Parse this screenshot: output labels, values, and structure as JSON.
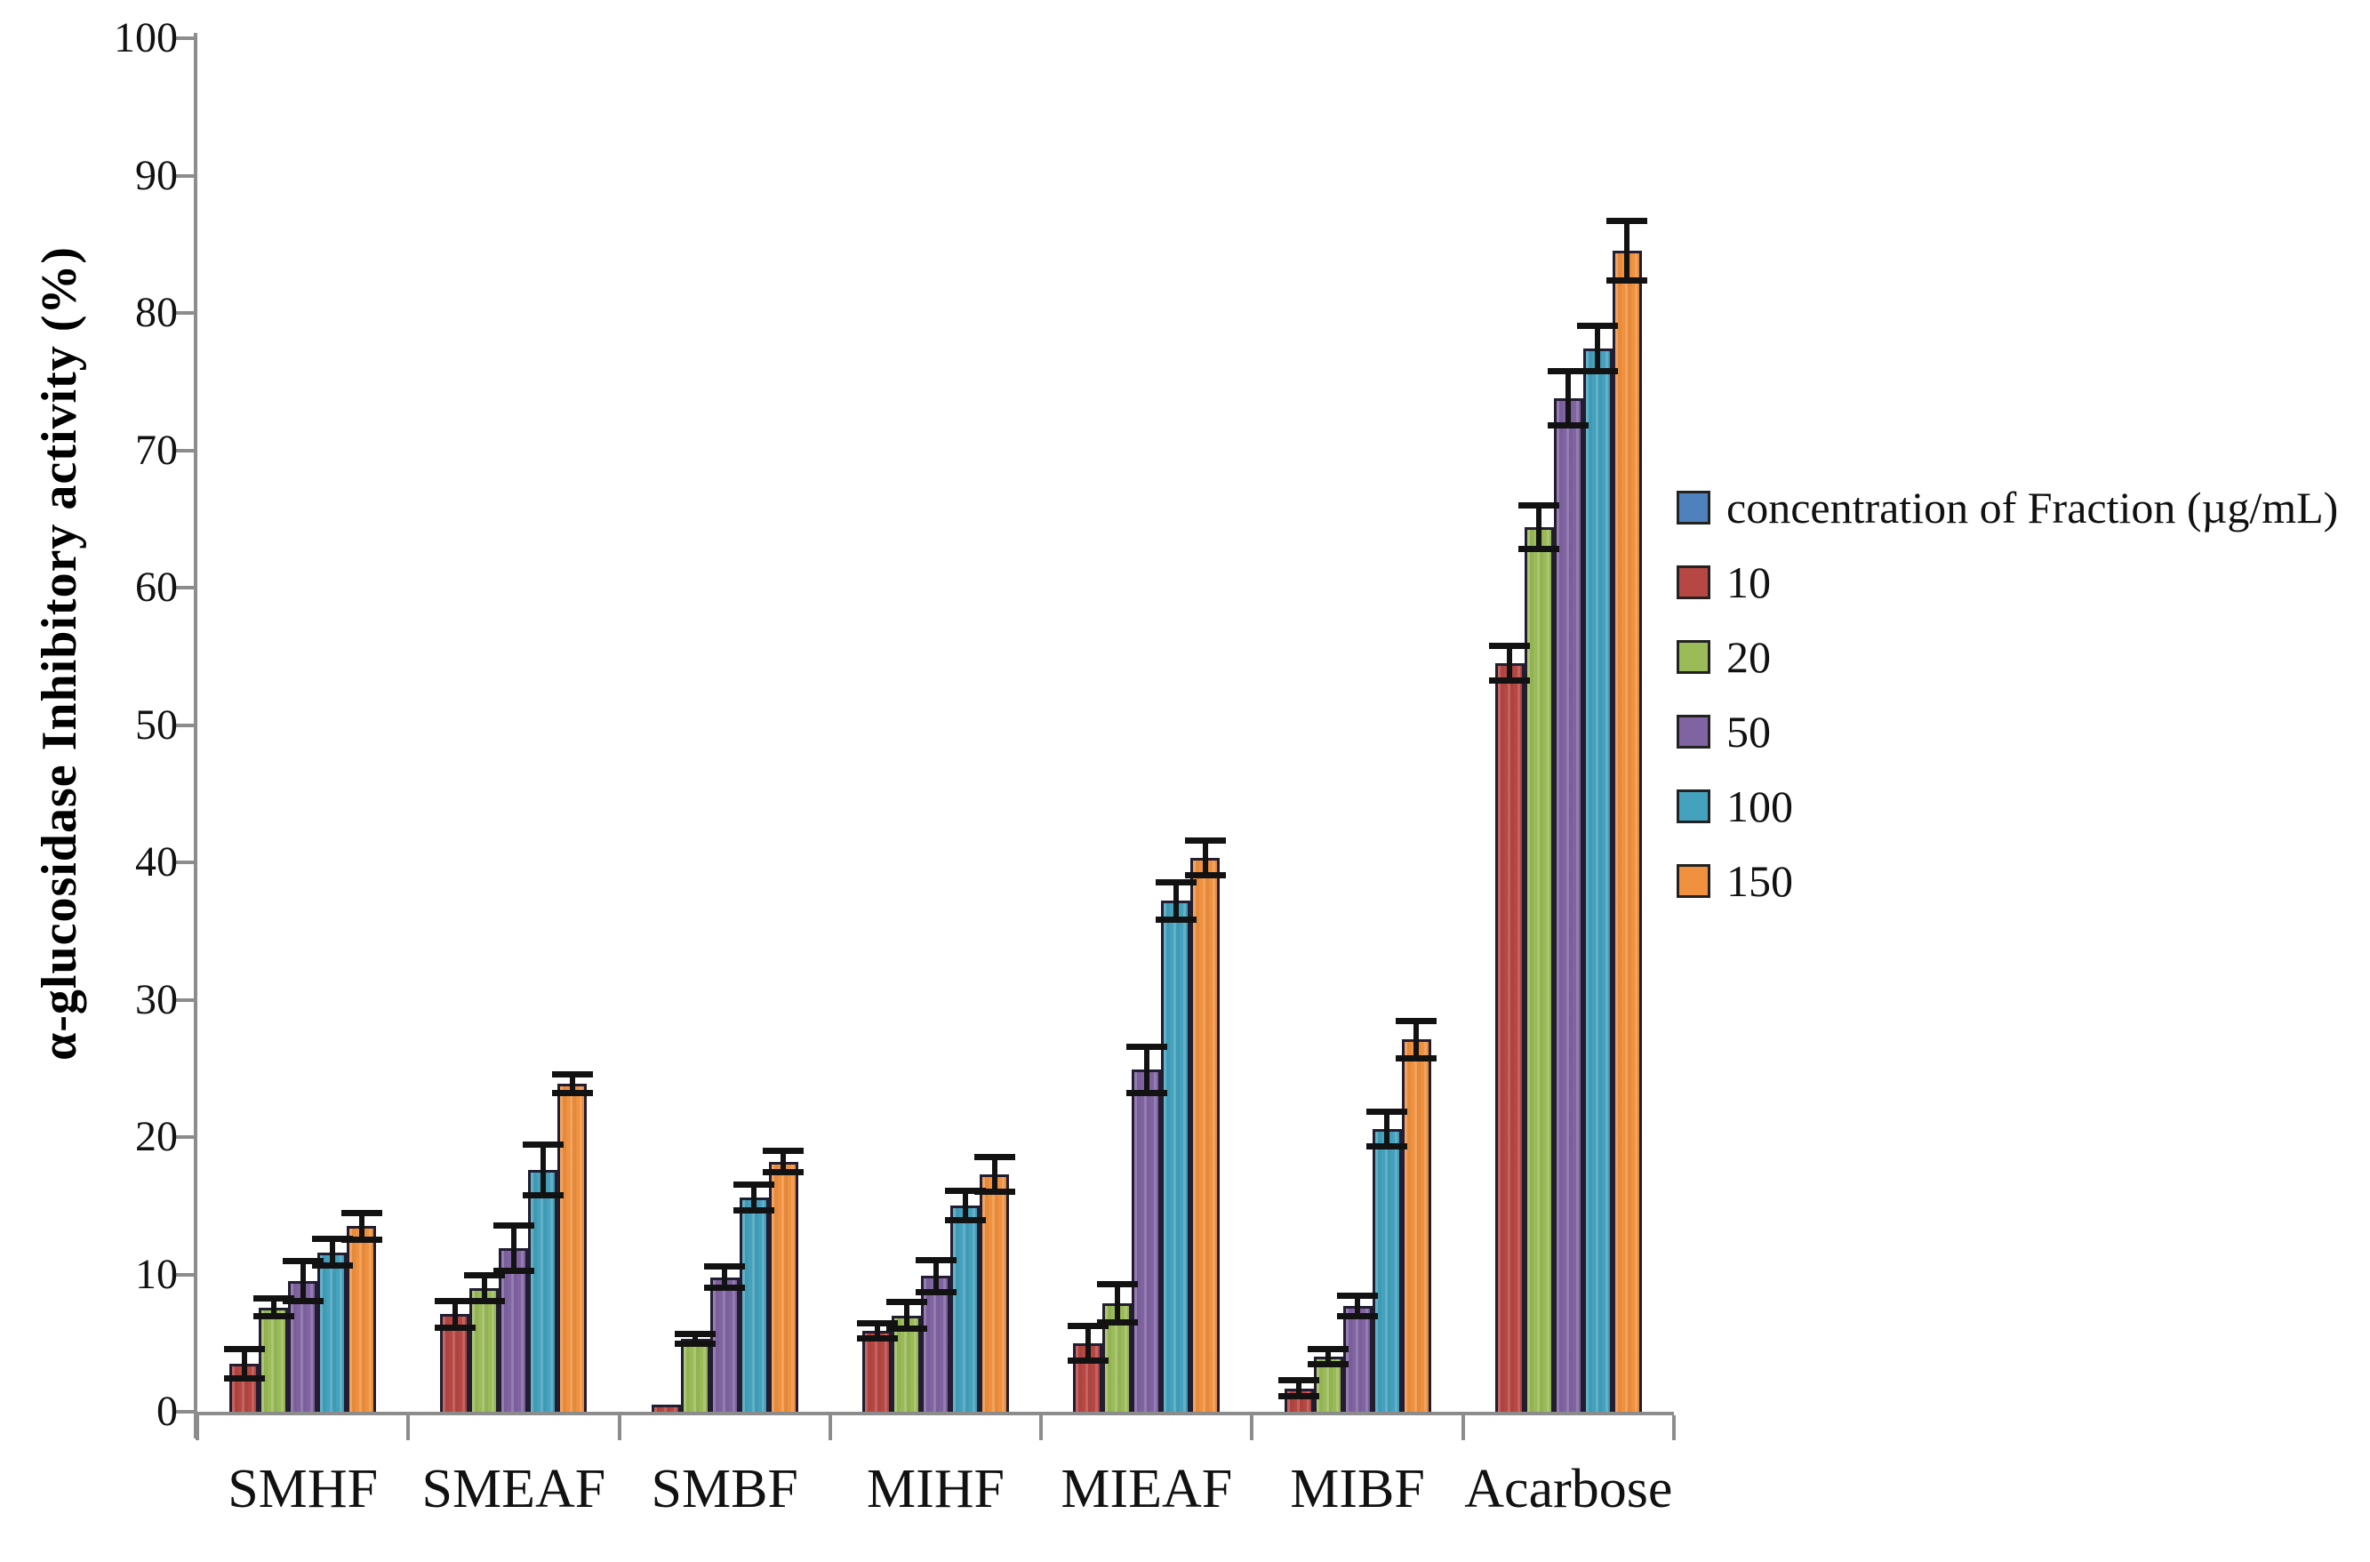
{
  "page": {
    "background": "#ffffff"
  },
  "y_axis": {
    "title": "α-glucosidase Inhibitory activity (%)",
    "tick_labels": [
      "0",
      "10",
      "20",
      "30",
      "40",
      "50",
      "60",
      "70",
      "80",
      "90",
      "100"
    ],
    "min": 0,
    "max": 100,
    "step": 10
  },
  "x_axis": {
    "categories": [
      "SMHF",
      "SMEAF",
      "SMBF",
      "MIHF",
      "MIEAF",
      "MIBF",
      "Acarbose"
    ]
  },
  "legend": {
    "items": [
      {
        "label": "concentration of Fraction (µg/mL)",
        "color": "#4F81BD"
      },
      {
        "label": "10",
        "color": "#B64743"
      },
      {
        "label": "20",
        "color": "#9BBB59"
      },
      {
        "label": "50",
        "color": "#8064A2"
      },
      {
        "label": "100",
        "color": "#44A2BE"
      },
      {
        "label": "150",
        "color": "#F0913F"
      }
    ]
  },
  "chart_data": {
    "type": "bar",
    "title": "",
    "xlabel": "",
    "ylabel": "α-glucosidase Inhibitory activity (%)",
    "ylim": [
      0,
      100
    ],
    "grid": false,
    "legend_position": "right",
    "legend_title": "concentration of Fraction (µg/mL)",
    "categories": [
      "SMHF",
      "SMEAF",
      "SMBF",
      "MIHF",
      "MIEAF",
      "MIBF",
      "Acarbose"
    ],
    "series": [
      {
        "name": "10",
        "color": "#B64743",
        "values": [
          3.5,
          7.1,
          0.5,
          5.9,
          5.0,
          1.7,
          54.5
        ],
        "errors": [
          1.1,
          1.0,
          0,
          0.6,
          1.3,
          0.6,
          1.3
        ]
      },
      {
        "name": "20",
        "color": "#9BBB59",
        "values": [
          7.6,
          9.0,
          5.3,
          7.0,
          7.9,
          4.0,
          64.4
        ],
        "errors": [
          0.7,
          1.0,
          0.4,
          1.0,
          1.4,
          0.6,
          1.6
        ]
      },
      {
        "name": "50",
        "color": "#8064A2",
        "values": [
          9.5,
          11.9,
          9.8,
          9.9,
          24.9,
          7.7,
          73.8
        ],
        "errors": [
          1.5,
          1.7,
          0.8,
          1.2,
          1.7,
          0.8,
          2.0
        ]
      },
      {
        "name": "100",
        "color": "#44A2BE",
        "values": [
          11.6,
          17.6,
          15.6,
          15.0,
          37.2,
          20.6,
          77.4
        ],
        "errors": [
          1.0,
          1.9,
          1.0,
          1.1,
          1.4,
          1.3,
          1.7
        ]
      },
      {
        "name": "150",
        "color": "#F0913F",
        "values": [
          13.5,
          23.9,
          18.2,
          17.3,
          40.3,
          27.1,
          84.5
        ],
        "errors": [
          1.0,
          0.7,
          0.8,
          1.3,
          1.3,
          1.4,
          2.2
        ]
      }
    ]
  }
}
